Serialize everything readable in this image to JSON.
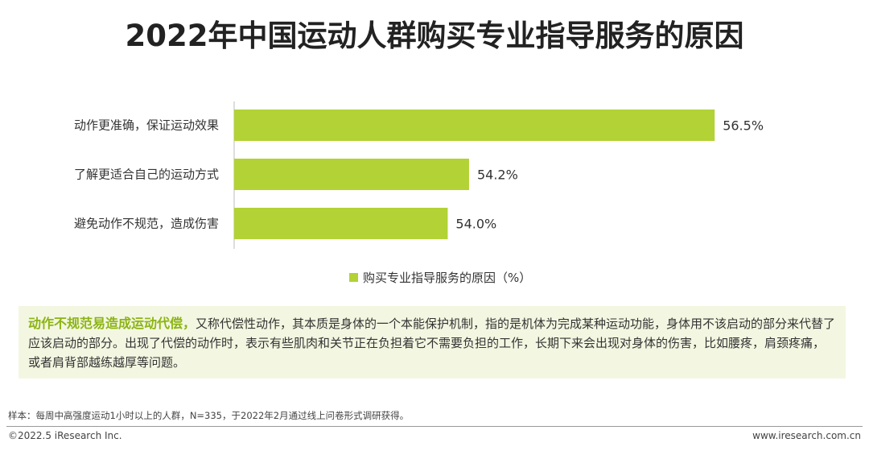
{
  "title": "2022年中国运动人群购买专业指导服务的原因",
  "chart_data": {
    "type": "bar",
    "orientation": "horizontal",
    "categories": [
      "动作更准确，保证运动效果",
      "了解更适合自己的运动方式",
      "避免动作不规范，造成伤害"
    ],
    "values": [
      56.5,
      54.2,
      54.0
    ],
    "value_labels": [
      "56.5%",
      "54.2%",
      "54.0%"
    ],
    "series": [
      {
        "name": "购买专业指导服务的原因（%）",
        "values": [
          56.5,
          54.2,
          54.0
        ]
      }
    ],
    "legend_label": "购买专业指导服务的原因（%）",
    "legend_position": "bottom",
    "bar_color": "#b2d235",
    "xlim": [
      52.0,
      56.8
    ],
    "grid": false
  },
  "note": {
    "highlight": "动作不规范易造成运动代偿，",
    "body": "又称代偿性动作，其本质是身体的一个本能保护机制，指的是机体为完成某种运动功能，身体用不该启动的部分来代替了应该启动的部分。出现了代偿的动作时，表示有些肌肉和关节正在负担着它不需要负担的工作，长期下来会出现对身体的伤害，比如腰疼，肩颈疼痛，或者肩背部越练越厚等问题。"
  },
  "sample_note": "样本：每周中高强度运动1小时以上的人群，N=335，于2022年2月通过线上问卷形式调研获得。",
  "footer": {
    "copyright": "©2022.5 iResearch Inc.",
    "website": "www.iresearch.com.cn"
  }
}
